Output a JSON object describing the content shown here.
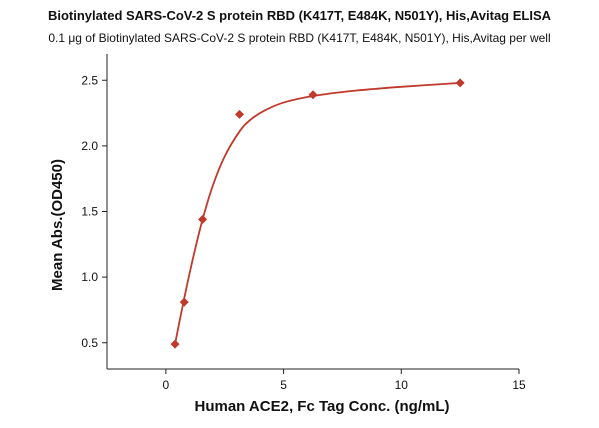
{
  "chart_data": {
    "type": "scatter",
    "title": "Biotinylated SARS-CoV-2 S protein RBD (K417T, E484K, N501Y), His,Avitag ELISA",
    "subtitle": "0.1 μg of Biotinylated SARS-CoV-2 S protein RBD (K417T, E484K, N501Y), His,Avitag per well",
    "xlabel": "Human ACE2, Fc Tag Conc. (ng/mL)",
    "ylabel": "Mean Abs.(OD450)",
    "xlim": [
      -2.5,
      15
    ],
    "ylim": [
      0.3,
      2.7
    ],
    "xticks": [
      0,
      5,
      10,
      15
    ],
    "yticks": [
      0.5,
      1.0,
      1.5,
      2.0,
      2.5
    ],
    "xtick_labels": [
      "0",
      "5",
      "10",
      "15"
    ],
    "ytick_labels": [
      "0.5",
      "1.0",
      "1.5",
      "2.0",
      "2.5"
    ],
    "marker_color": "#c0392b",
    "curve_color": "#c0392b",
    "grid": false,
    "series": [
      {
        "x": [
          0.39,
          0.78,
          1.56,
          3.13,
          6.25,
          12.5
        ],
        "y": [
          0.49,
          0.81,
          1.44,
          2.24,
          2.39,
          2.48
        ]
      }
    ],
    "fit_curve": {
      "x": [
        0.39,
        0.6,
        0.9,
        1.2,
        1.56,
        2.0,
        2.5,
        3.13,
        3.6,
        4.2,
        5.0,
        6.25,
        8.0,
        10.0,
        12.5
      ],
      "y": [
        0.49,
        0.68,
        0.94,
        1.18,
        1.44,
        1.7,
        1.92,
        2.11,
        2.2,
        2.27,
        2.33,
        2.38,
        2.42,
        2.45,
        2.48
      ]
    }
  }
}
